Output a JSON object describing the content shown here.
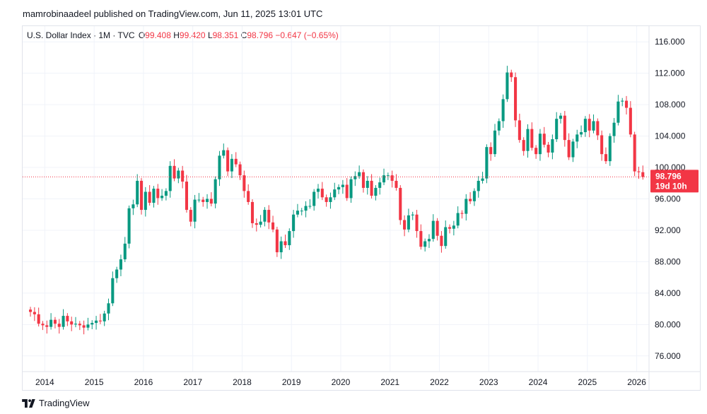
{
  "header": {
    "text": "mamrobinaadeel published on TradingView.com, Jun 11, 2025 13:01 UTC"
  },
  "legend": {
    "symbol": "U.S. Dollar Index · 1M · TVC",
    "o_label": "O",
    "o_value": "99.408",
    "h_label": "H",
    "h_value": "99.420",
    "l_label": "L",
    "l_value": "98.351",
    "c_label": "C",
    "c_value": "98.796",
    "change": "−0.647 (−0.65%)"
  },
  "price_tag": {
    "price": "98.796",
    "countdown": "19d 10h"
  },
  "footer": {
    "brand": "TradingView"
  },
  "colors": {
    "up": "#089981",
    "down": "#f23645",
    "grid": "#f0f3fa",
    "axis_text": "#131722",
    "tag_bg": "#f23645"
  },
  "chart_data": {
    "type": "candlestick",
    "title": "U.S. Dollar Index",
    "interval": "1M",
    "xlabel": "",
    "ylabel": "",
    "ylim": [
      74,
      118
    ],
    "x_range": [
      2013.55,
      2026.25
    ],
    "y_ticks": [
      "76.000",
      "80.000",
      "84.000",
      "88.000",
      "92.000",
      "96.000",
      "100.000",
      "104.000",
      "108.000",
      "112.000",
      "116.000"
    ],
    "x_ticks": [
      "2014",
      "2015",
      "2016",
      "2017",
      "2018",
      "2019",
      "2020",
      "2021",
      "2022",
      "2023",
      "2024",
      "2025",
      "2026"
    ],
    "last_price": 98.796,
    "closes": [
      81.6,
      81.3,
      80.1,
      79.9,
      79.7,
      80.6,
      80.1,
      79.7,
      81.1,
      80.4,
      80.0,
      80.1,
      79.9,
      79.6,
      80.0,
      80.2,
      80.5,
      80.4,
      81.4,
      82.7,
      85.9,
      87.0,
      88.3,
      90.3,
      94.8,
      95.3,
      98.3,
      94.6,
      96.9,
      95.5,
      97.3,
      96.1,
      96.4,
      97.0,
      100.2,
      98.6,
      99.6,
      98.2,
      94.6,
      93.1,
      95.9,
      95.9,
      95.6,
      96.0,
      95.4,
      98.5,
      101.5,
      102.2,
      99.5,
      101.1,
      100.4,
      99.0,
      97.0,
      95.6,
      92.9,
      92.7,
      93.1,
      94.6,
      93.0,
      92.1,
      89.2,
      90.6,
      90.1,
      91.9,
      94.0,
      94.5,
      94.5,
      95.1,
      95.1,
      96.9,
      97.3,
      96.2,
      95.6,
      96.2,
      97.2,
      97.5,
      97.8,
      96.1,
      98.5,
      98.9,
      99.4,
      97.4,
      98.3,
      96.4,
      97.4,
      98.1,
      99.0,
      99.0,
      98.3,
      97.4,
      93.3,
      92.1,
      93.9,
      94.0,
      91.9,
      89.9,
      90.6,
      90.9,
      93.2,
      91.3,
      90.0,
      92.4,
      92.2,
      92.6,
      94.2,
      94.1,
      96.0,
      95.7,
      97.0,
      98.3,
      98.6,
      102.6,
      101.7,
      104.7,
      105.9,
      108.7,
      112.1,
      111.5,
      106.0,
      103.5,
      102.1,
      104.9,
      102.5,
      101.7,
      104.3,
      102.9,
      101.9,
      103.6,
      106.2,
      106.6,
      103.5,
      101.3,
      103.3,
      104.2,
      104.5,
      106.2,
      104.7,
      105.9,
      104.1,
      101.7,
      100.8,
      104.0,
      105.7,
      108.4,
      108.5,
      107.6,
      104.2,
      99.5,
      99.4,
      98.8
    ]
  }
}
